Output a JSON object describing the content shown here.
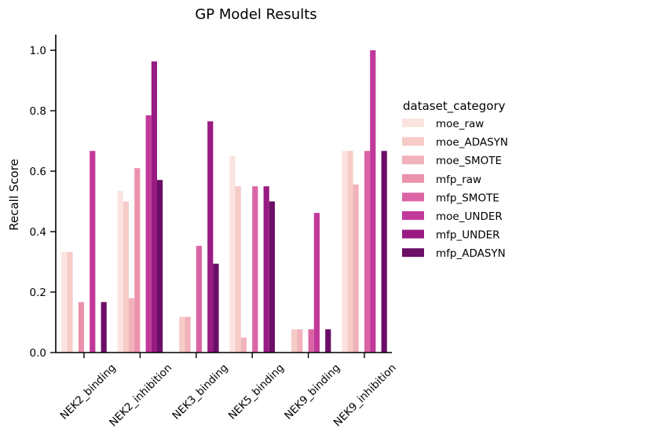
{
  "chart_data": {
    "type": "bar",
    "title": "GP Model Results",
    "xlabel": "",
    "ylabel": "Recall Score",
    "ylim": [
      0,
      1.05
    ],
    "yticks": [
      0.0,
      0.2,
      0.4,
      0.6,
      0.8,
      1.0
    ],
    "ytick_labels": [
      "0.0",
      "0.2",
      "0.4",
      "0.6",
      "0.8",
      "1.0"
    ],
    "categories": [
      "NEK2_binding",
      "NEK2_inhibition",
      "NEK3_binding",
      "NEK5_binding",
      "NEK9_binding",
      "NEK9_inhibition"
    ],
    "legend_title": "dataset_category",
    "legend_position": "right",
    "grid": false,
    "series": [
      {
        "name": "moe_raw",
        "color": "#fbe4e0",
        "values": [
          0.333,
          0.535,
          0.0,
          0.65,
          0.0,
          0.667
        ]
      },
      {
        "name": "moe_ADASYN",
        "color": "#f6cbc8",
        "values": [
          0.333,
          0.5,
          0.118,
          0.55,
          0.077,
          0.667
        ]
      },
      {
        "name": "moe_SMOTE",
        "color": "#f1b2bb",
        "values": [
          0.0,
          0.18,
          0.118,
          0.05,
          0.077,
          0.556
        ]
      },
      {
        "name": "mfp_raw",
        "color": "#ec92ad",
        "values": [
          0.167,
          0.61,
          0.0,
          0.0,
          0.0,
          0.0
        ]
      },
      {
        "name": "mfp_SMOTE",
        "color": "#db64a4",
        "values": [
          0.0,
          0.0,
          0.353,
          0.55,
          0.077,
          0.667
        ]
      },
      {
        "name": "moe_UNDER",
        "color": "#c1399a",
        "values": [
          0.667,
          0.785,
          0.0,
          0.0,
          0.462,
          1.0
        ]
      },
      {
        "name": "mfp_UNDER",
        "color": "#981b83",
        "values": [
          0.0,
          0.963,
          0.765,
          0.55,
          0.0,
          0.0
        ]
      },
      {
        "name": "mfp_ADASYN",
        "color": "#6c0e67",
        "values": [
          0.167,
          0.571,
          0.294,
          0.5,
          0.077,
          0.667
        ]
      }
    ]
  }
}
